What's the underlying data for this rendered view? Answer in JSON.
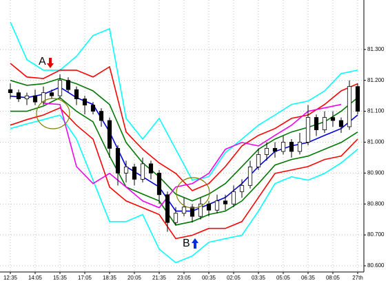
{
  "chart_data": {
    "type": "candlestick",
    "xlim": [
      -2.5,
      85.5
    ],
    "ylim": [
      80.58,
      81.46
    ],
    "grid": true,
    "xticks": [
      {
        "value": 0,
        "label": "12:35"
      },
      {
        "value": 6,
        "label": "14:05"
      },
      {
        "value": 12,
        "label": "15:35"
      },
      {
        "value": 18,
        "label": "17:05"
      },
      {
        "value": 24,
        "label": "18:35"
      },
      {
        "value": 30,
        "label": "20:05"
      },
      {
        "value": 36,
        "label": "21:35"
      },
      {
        "value": 42,
        "label": "23:05"
      },
      {
        "value": 48,
        "label": "00:35"
      },
      {
        "value": 54,
        "label": "02:05"
      },
      {
        "value": 60,
        "label": "03:35"
      },
      {
        "value": 66,
        "label": "05:05"
      },
      {
        "value": 72,
        "label": "06:35"
      },
      {
        "value": 78,
        "label": "08:05"
      },
      {
        "value": 84,
        "label": "27th"
      }
    ],
    "yticks": [
      {
        "value": 80.6,
        "label": "80.600"
      },
      {
        "value": 80.7,
        "label": "80.700"
      },
      {
        "value": 80.8,
        "label": "80.800"
      },
      {
        "value": 80.9,
        "label": "80.900"
      },
      {
        "value": 81.0,
        "label": "81.000"
      },
      {
        "value": 81.1,
        "label": "81.100"
      },
      {
        "value": 81.2,
        "label": "81.200"
      },
      {
        "value": 81.3,
        "label": "81.300"
      }
    ],
    "candles": {
      "up_color": "#ffffff",
      "down_color": "#000000",
      "edge_color": "#000000",
      "x": [
        0,
        2,
        4,
        6,
        8,
        10,
        12,
        14,
        16,
        18,
        20,
        22,
        24,
        26,
        28,
        30,
        32,
        34,
        36,
        38,
        40,
        42,
        44,
        46,
        48,
        50,
        52,
        54,
        56,
        58,
        60,
        62,
        64,
        66,
        68,
        70,
        72,
        74,
        76,
        78,
        80,
        82,
        84
      ],
      "open": [
        81.17,
        81.16,
        81.14,
        81.15,
        81.13,
        81.16,
        81.15,
        81.2,
        81.17,
        81.14,
        81.12,
        81.1,
        81.07,
        80.98,
        80.9,
        80.92,
        80.88,
        80.93,
        80.9,
        80.83,
        80.74,
        80.77,
        80.79,
        80.76,
        80.8,
        80.78,
        80.81,
        80.8,
        80.84,
        80.86,
        80.92,
        80.96,
        80.98,
        80.97,
        81.0,
        80.97,
        81.0,
        81.08,
        81.04,
        81.08,
        81.07,
        81.05,
        81.18
      ],
      "high": [
        81.19,
        81.17,
        81.16,
        81.17,
        81.18,
        81.17,
        81.22,
        81.21,
        81.18,
        81.15,
        81.13,
        81.11,
        81.08,
        80.99,
        80.94,
        80.93,
        80.95,
        80.94,
        80.91,
        80.84,
        80.79,
        80.82,
        80.8,
        80.82,
        80.81,
        80.83,
        80.83,
        80.86,
        80.88,
        80.94,
        80.98,
        81.0,
        81.0,
        81.02,
        81.01,
        81.03,
        81.12,
        81.09,
        81.1,
        81.1,
        81.08,
        81.2,
        81.19
      ],
      "low": [
        81.14,
        81.13,
        81.12,
        81.12,
        81.12,
        81.14,
        81.14,
        81.16,
        81.12,
        81.09,
        81.09,
        81.05,
        80.95,
        80.86,
        80.87,
        80.86,
        80.87,
        80.88,
        80.8,
        80.71,
        80.73,
        80.76,
        80.74,
        80.75,
        80.76,
        80.77,
        80.78,
        80.79,
        80.82,
        80.85,
        80.91,
        80.94,
        80.95,
        80.96,
        80.95,
        80.96,
        80.99,
        81.02,
        81.03,
        81.05,
        81.03,
        81.04,
        81.09
      ],
      "close": [
        81.16,
        81.14,
        81.15,
        81.13,
        81.16,
        81.15,
        81.2,
        81.17,
        81.14,
        81.12,
        81.1,
        81.07,
        80.98,
        80.9,
        80.92,
        80.88,
        80.93,
        80.9,
        80.83,
        80.74,
        80.77,
        80.79,
        80.76,
        80.8,
        80.78,
        80.81,
        80.8,
        80.84,
        80.86,
        80.92,
        80.96,
        80.98,
        80.97,
        81.0,
        80.97,
        81.0,
        81.08,
        81.04,
        81.08,
        81.07,
        81.05,
        81.18,
        81.1
      ]
    },
    "x": [
      0,
      4,
      8,
      12,
      16,
      20,
      24,
      28,
      32,
      36,
      40,
      44,
      48,
      52,
      56,
      60,
      64,
      68,
      72,
      76,
      80,
      84
    ],
    "series": [
      {
        "color": "#00ffff",
        "values": [
          81.389,
          81.267,
          81.233,
          81.233,
          81.278,
          81.345,
          81.367,
          81.077,
          81.01,
          81.077,
          80.977,
          80.877,
          80.888,
          80.966,
          81.01,
          81.055,
          81.088,
          81.122,
          81.133,
          81.166,
          81.222,
          81.233
        ]
      },
      {
        "color": "#00ffff",
        "values": [
          81.044,
          81.059,
          81.073,
          81.088,
          81.01,
          80.877,
          80.743,
          80.743,
          80.766,
          80.654,
          80.61,
          80.632,
          80.676,
          80.688,
          80.699,
          80.777,
          80.866,
          80.888,
          80.877,
          80.899,
          80.933,
          80.977
        ]
      },
      {
        "color": "#ff0000",
        "values": [
          81.255,
          81.211,
          81.206,
          81.233,
          81.233,
          81.211,
          81.244,
          81.033,
          80.977,
          80.933,
          80.899,
          80.843,
          80.866,
          80.921,
          80.988,
          81.022,
          81.044,
          81.077,
          81.088,
          81.122,
          81.166,
          81.189
        ]
      },
      {
        "color": "#ff0000",
        "values": [
          81.055,
          81.073,
          81.088,
          81.111,
          81.055,
          81.01,
          80.855,
          80.81,
          80.788,
          80.766,
          80.688,
          80.699,
          80.721,
          80.721,
          80.743,
          80.821,
          80.899,
          80.91,
          80.921,
          80.944,
          80.955,
          81.01
        ]
      },
      {
        "color": "#007700",
        "values": [
          81.2,
          81.184,
          81.189,
          81.206,
          81.189,
          81.166,
          81.122,
          80.999,
          80.933,
          80.888,
          80.832,
          80.81,
          80.832,
          80.866,
          80.921,
          80.977,
          81.01,
          81.033,
          81.048,
          81.066,
          81.1,
          81.144
        ]
      },
      {
        "color": "#007700",
        "values": [
          81.1,
          81.1,
          81.117,
          81.144,
          81.1,
          81.066,
          80.955,
          80.855,
          80.832,
          80.81,
          80.732,
          80.743,
          80.766,
          80.777,
          80.81,
          80.866,
          80.926,
          80.944,
          80.955,
          80.977,
          80.999,
          81.033
        ]
      },
      {
        "color": "#0000dd",
        "values": [
          81.149,
          81.144,
          81.155,
          81.178,
          81.144,
          81.122,
          81.033,
          80.921,
          80.888,
          80.855,
          80.777,
          80.777,
          80.799,
          80.821,
          80.866,
          80.921,
          80.97,
          80.988,
          80.999,
          81.022,
          81.044,
          81.088
        ]
      },
      {
        "color": "#ee00ee",
        "values": [
          null,
          null,
          81.126,
          81.122,
          80.921,
          80.866,
          80.899,
          80.855,
          80.81,
          80.788,
          80.855,
          80.866,
          80.899,
          80.977,
          80.999,
          80.988,
          81.022,
          81.055,
          81.1,
          81.111,
          81.122,
          null
        ]
      }
    ],
    "annotations": [
      "A",
      "B"
    ]
  }
}
